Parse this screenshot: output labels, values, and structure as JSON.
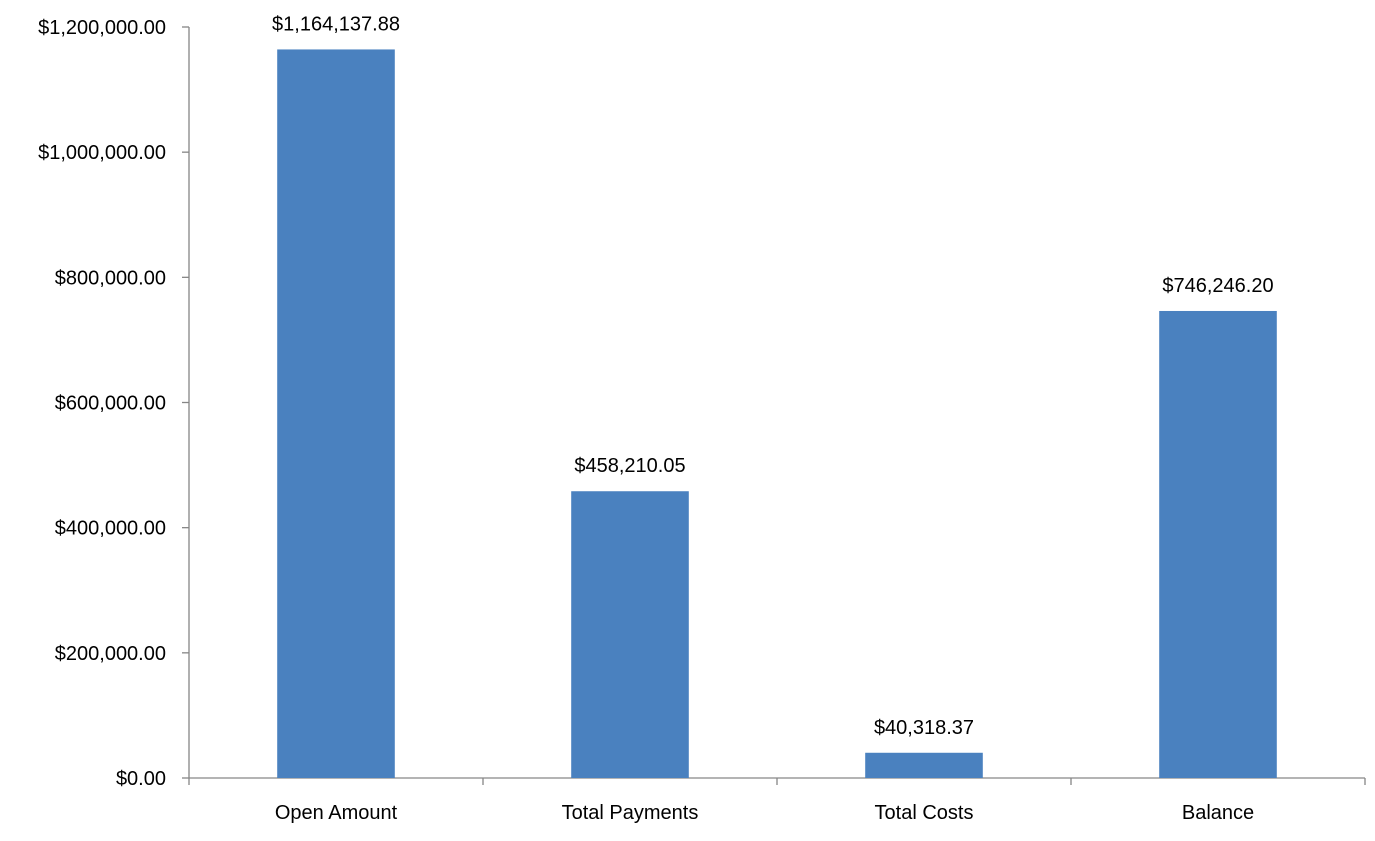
{
  "chart_data": {
    "type": "bar",
    "categories": [
      "Open Amount",
      "Total Payments",
      "Total Costs",
      "Balance"
    ],
    "values": [
      1164137.88,
      458210.05,
      40318.37,
      746246.2
    ],
    "data_labels": [
      "$1,164,137.88",
      "$458,210.05",
      "$40,318.37",
      "$746,246.20"
    ],
    "y_ticks": [
      0,
      200000,
      400000,
      600000,
      800000,
      1000000,
      1200000
    ],
    "y_tick_labels": [
      "$0.00",
      "$200,000.00",
      "$400,000.00",
      "$600,000.00",
      "$800,000.00",
      "$1,000,000.00",
      "$1,200,000.00"
    ],
    "ylim": [
      0,
      1200000
    ],
    "title": "",
    "xlabel": "",
    "ylabel": "",
    "grid": false,
    "legend": "none",
    "colors": {
      "bar": "#4a81bf",
      "axis": "#868686",
      "text": "#000000"
    }
  }
}
